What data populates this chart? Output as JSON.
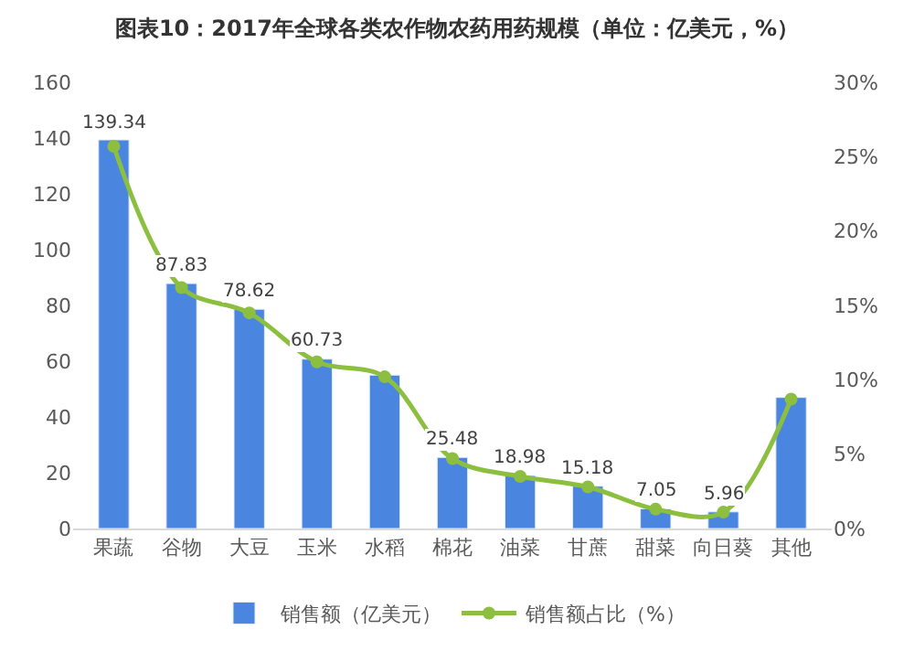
{
  "chart_data": {
    "type": "bar",
    "title": "图表10：2017年全球各类农作物农药用药规模（单位：亿美元，%）",
    "categories": [
      "果蔬",
      "谷物",
      "大豆",
      "玉米",
      "水稻",
      "棉花",
      "油菜",
      "甘蔗",
      "甜菜",
      "向日葵",
      "其他"
    ],
    "series": [
      {
        "name": "销售额（亿美元）",
        "color": "#4a86e0",
        "values": [
          139.34,
          87.83,
          78.62,
          60.73,
          55,
          25.48,
          18.98,
          15.18,
          7.05,
          5.96,
          47
        ],
        "value_labels": [
          "139.34",
          "87.83",
          "78.62",
          "60.73",
          null,
          "25.48",
          "18.98",
          "15.18",
          "7.05",
          "5.96",
          null
        ]
      },
      {
        "name": "销售额占比（%）",
        "type": "line",
        "axis": "y2",
        "color": "#8cbf3f",
        "marker": "circle",
        "values": [
          25.7,
          16.2,
          14.5,
          11.2,
          10.2,
          4.7,
          3.5,
          2.8,
          1.3,
          1.1,
          8.7
        ]
      }
    ],
    "ylim": [
      0,
      160
    ],
    "yticks": [
      0,
      20,
      40,
      60,
      80,
      100,
      120,
      140,
      160
    ],
    "y2lim": [
      0,
      30
    ],
    "y2ticks": [
      {
        "value": 0,
        "label": "0%"
      },
      {
        "value": 5,
        "label": "5%"
      },
      {
        "value": 10,
        "label": "10%"
      },
      {
        "value": 15,
        "label": "15%"
      },
      {
        "value": 20,
        "label": "20%"
      },
      {
        "value": 25,
        "label": "25%"
      },
      {
        "value": 30,
        "label": "30%"
      }
    ],
    "grid": false,
    "legend": "bottom"
  }
}
